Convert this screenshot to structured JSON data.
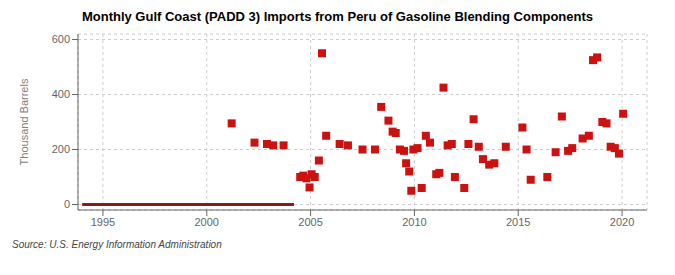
{
  "chart_data": {
    "type": "scatter",
    "title": "Monthly Gulf Coast (PADD 3) Imports from Peru of Gasoline Blending Components",
    "ylabel": "Thousand Barrels",
    "annotations": [
      "Source: U.S. Energy Information Administration"
    ],
    "xlim": [
      1993.8,
      2021.2
    ],
    "ylim": [
      -20,
      620
    ],
    "xticks": [
      1995,
      2000,
      2005,
      2010,
      2015,
      2020
    ],
    "yticks": [
      0,
      200,
      400,
      600
    ],
    "grid": true,
    "series": [
      {
        "type": "line",
        "color": "#8b1a1a",
        "line_style": "solid",
        "x": [
          1994.0,
          2004.2
        ],
        "values": [
          0,
          0
        ]
      },
      {
        "type": "scatter",
        "color": "#cc1111",
        "marker": "square",
        "x": [
          2001.2,
          2002.3,
          2002.9,
          2003.2,
          2003.7,
          2004.5,
          2004.65,
          2004.8,
          2004.95,
          2005.05,
          2005.2,
          2005.4,
          2005.55,
          2005.75,
          2006.4,
          2006.8,
          2007.5,
          2008.1,
          2008.4,
          2008.75,
          2008.95,
          2009.1,
          2009.3,
          2009.5,
          2009.6,
          2009.75,
          2009.85,
          2009.95,
          2010.15,
          2010.35,
          2010.55,
          2010.75,
          2011.05,
          2011.2,
          2011.4,
          2011.6,
          2011.8,
          2011.95,
          2012.4,
          2012.6,
          2012.85,
          2013.1,
          2013.3,
          2013.6,
          2013.85,
          2014.4,
          2015.2,
          2015.4,
          2015.6,
          2016.4,
          2016.8,
          2017.1,
          2017.4,
          2017.6,
          2018.1,
          2018.4,
          2018.6,
          2018.8,
          2019.05,
          2019.25,
          2019.45,
          2019.65,
          2019.85,
          2020.05
        ],
        "values": [
          295,
          225,
          220,
          215,
          215,
          100,
          105,
          95,
          62,
          110,
          100,
          160,
          550,
          250,
          220,
          215,
          200,
          200,
          355,
          305,
          265,
          260,
          200,
          195,
          150,
          120,
          50,
          200,
          205,
          60,
          250,
          225,
          110,
          115,
          425,
          215,
          220,
          100,
          60,
          220,
          310,
          210,
          165,
          145,
          150,
          210,
          280,
          200,
          90,
          100,
          190,
          320,
          195,
          205,
          240,
          250,
          525,
          535,
          300,
          295,
          210,
          205,
          185,
          330
        ]
      }
    ]
  }
}
